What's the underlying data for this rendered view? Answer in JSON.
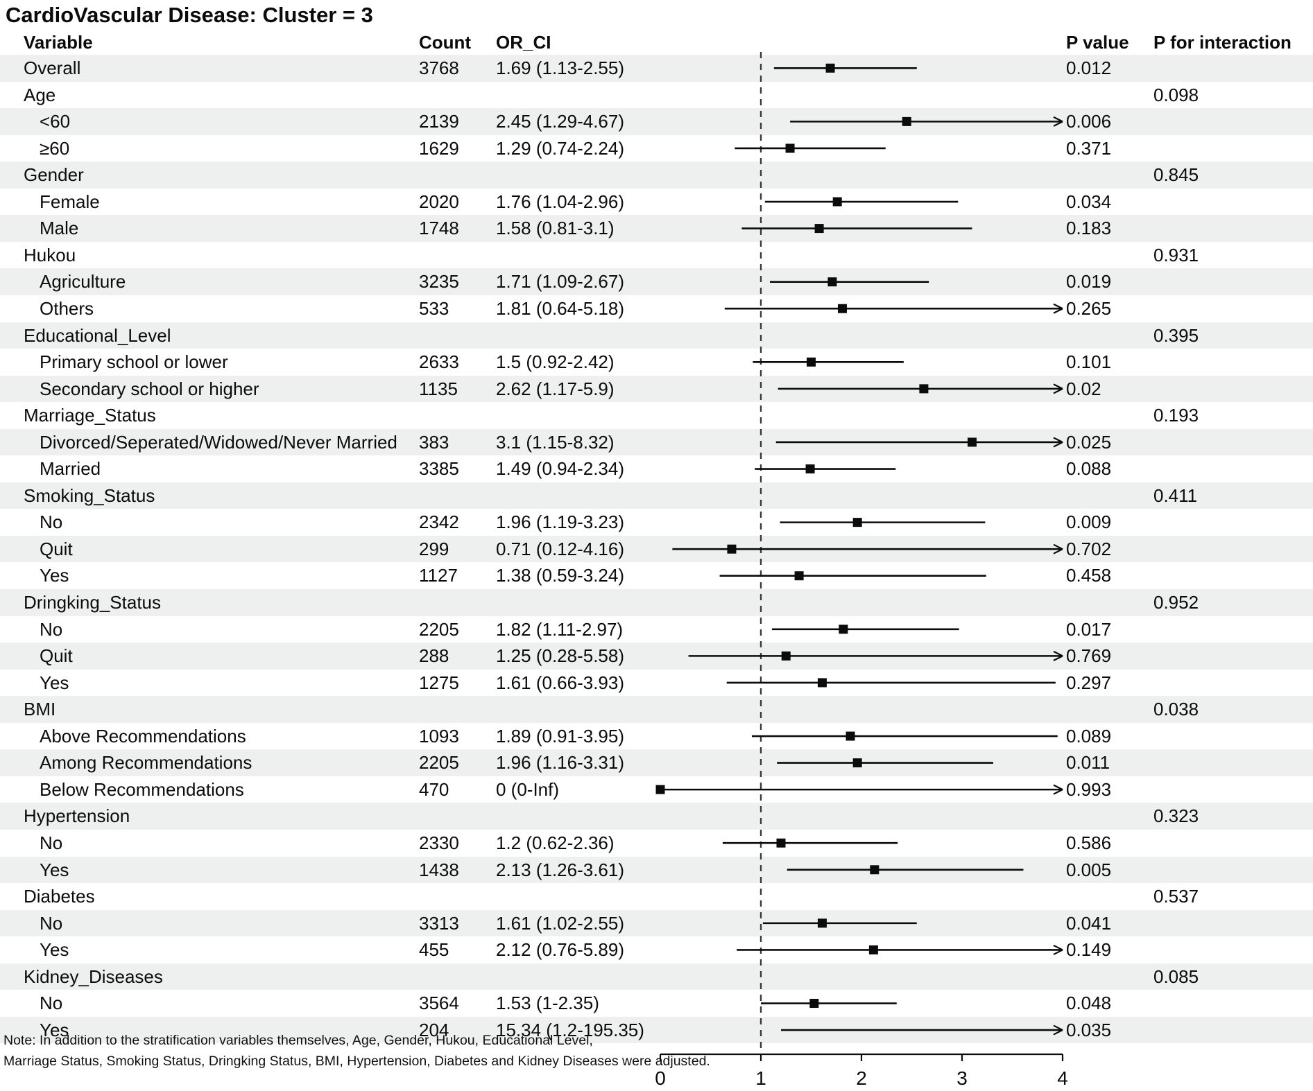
{
  "title": "CardioVascular Disease: Cluster = 3",
  "columns": {
    "variable": "Variable",
    "count": "Count",
    "or_ci": "OR_CI",
    "p_value": "P value",
    "p_interaction": "P for interaction"
  },
  "note_lines": [
    "Note: In addition to the stratification variables themselves, Age, Gender, Hukou, Educational Level,",
    "Marriage Status, Smoking Status, Dringking Status, BMI, Hypertension, Diabetes and Kidney Diseases were adjusted."
  ],
  "colors": {
    "row_shade": "#edf0ef",
    "ink": "#0b0b0b"
  },
  "chart_data": {
    "type": "forest",
    "title": "CardioVascular Disease: Cluster = 3",
    "x_axis": {
      "ticks": [
        0,
        1,
        2,
        3,
        4
      ],
      "range": [
        0,
        4
      ],
      "reference_line": 1,
      "grid": false
    },
    "rows": [
      {
        "label": "Overall",
        "indent": false,
        "shaded": true,
        "count": "3768",
        "or_ci": "1.69 (1.13-2.55)",
        "or": 1.69,
        "low": 1.13,
        "high": 2.55,
        "arrow": false,
        "p": "0.012",
        "p_interaction": ""
      },
      {
        "label": "Age",
        "indent": false,
        "shaded": false,
        "count": "",
        "or_ci": "",
        "or": null,
        "low": null,
        "high": null,
        "arrow": false,
        "p": "",
        "p_interaction": "0.098"
      },
      {
        "label": "<60",
        "indent": true,
        "shaded": true,
        "count": "2139",
        "or_ci": "2.45 (1.29-4.67)",
        "or": 2.45,
        "low": 1.29,
        "high": 4.67,
        "arrow": true,
        "p": "0.006",
        "p_interaction": ""
      },
      {
        "label": "≥60",
        "indent": true,
        "shaded": false,
        "count": "1629",
        "or_ci": "1.29 (0.74-2.24)",
        "or": 1.29,
        "low": 0.74,
        "high": 2.24,
        "arrow": false,
        "p": "0.371",
        "p_interaction": ""
      },
      {
        "label": "Gender",
        "indent": false,
        "shaded": true,
        "count": "",
        "or_ci": "",
        "or": null,
        "low": null,
        "high": null,
        "arrow": false,
        "p": "",
        "p_interaction": "0.845"
      },
      {
        "label": "Female",
        "indent": true,
        "shaded": false,
        "count": "2020",
        "or_ci": "1.76 (1.04-2.96)",
        "or": 1.76,
        "low": 1.04,
        "high": 2.96,
        "arrow": false,
        "p": "0.034",
        "p_interaction": ""
      },
      {
        "label": "Male",
        "indent": true,
        "shaded": true,
        "count": "1748",
        "or_ci": "1.58 (0.81-3.1)",
        "or": 1.58,
        "low": 0.81,
        "high": 3.1,
        "arrow": false,
        "p": "0.183",
        "p_interaction": ""
      },
      {
        "label": "Hukou",
        "indent": false,
        "shaded": false,
        "count": "",
        "or_ci": "",
        "or": null,
        "low": null,
        "high": null,
        "arrow": false,
        "p": "",
        "p_interaction": "0.931"
      },
      {
        "label": "Agriculture",
        "indent": true,
        "shaded": true,
        "count": "3235",
        "or_ci": "1.71 (1.09-2.67)",
        "or": 1.71,
        "low": 1.09,
        "high": 2.67,
        "arrow": false,
        "p": "0.019",
        "p_interaction": ""
      },
      {
        "label": "Others",
        "indent": true,
        "shaded": false,
        "count": "533",
        "or_ci": "1.81 (0.64-5.18)",
        "or": 1.81,
        "low": 0.64,
        "high": 5.18,
        "arrow": true,
        "p": "0.265",
        "p_interaction": ""
      },
      {
        "label": "Educational_Level",
        "indent": false,
        "shaded": true,
        "count": "",
        "or_ci": "",
        "or": null,
        "low": null,
        "high": null,
        "arrow": false,
        "p": "",
        "p_interaction": "0.395"
      },
      {
        "label": "Primary school or lower",
        "indent": true,
        "shaded": false,
        "count": "2633",
        "or_ci": "1.5 (0.92-2.42)",
        "or": 1.5,
        "low": 0.92,
        "high": 2.42,
        "arrow": false,
        "p": "0.101",
        "p_interaction": ""
      },
      {
        "label": "Secondary school or higher",
        "indent": true,
        "shaded": true,
        "count": "1135",
        "or_ci": "2.62 (1.17-5.9)",
        "or": 2.62,
        "low": 1.17,
        "high": 5.9,
        "arrow": true,
        "p": "0.02",
        "p_interaction": ""
      },
      {
        "label": "Marriage_Status",
        "indent": false,
        "shaded": false,
        "count": "",
        "or_ci": "",
        "or": null,
        "low": null,
        "high": null,
        "arrow": false,
        "p": "",
        "p_interaction": "0.193"
      },
      {
        "label": "Divorced/Seperated/Widowed/Never Married",
        "indent": true,
        "shaded": true,
        "count": "383",
        "or_ci": "3.1 (1.15-8.32)",
        "or": 3.1,
        "low": 1.15,
        "high": 8.32,
        "arrow": true,
        "p": "0.025",
        "p_interaction": ""
      },
      {
        "label": "Married",
        "indent": true,
        "shaded": false,
        "count": "3385",
        "or_ci": "1.49 (0.94-2.34)",
        "or": 1.49,
        "low": 0.94,
        "high": 2.34,
        "arrow": false,
        "p": "0.088",
        "p_interaction": ""
      },
      {
        "label": "Smoking_Status",
        "indent": false,
        "shaded": true,
        "count": "",
        "or_ci": "",
        "or": null,
        "low": null,
        "high": null,
        "arrow": false,
        "p": "",
        "p_interaction": "0.411"
      },
      {
        "label": "No",
        "indent": true,
        "shaded": false,
        "count": "2342",
        "or_ci": "1.96 (1.19-3.23)",
        "or": 1.96,
        "low": 1.19,
        "high": 3.23,
        "arrow": false,
        "p": "0.009",
        "p_interaction": ""
      },
      {
        "label": "Quit",
        "indent": true,
        "shaded": true,
        "count": "299",
        "or_ci": "0.71 (0.12-4.16)",
        "or": 0.71,
        "low": 0.12,
        "high": 4.16,
        "arrow": true,
        "p": "0.702",
        "p_interaction": ""
      },
      {
        "label": "Yes",
        "indent": true,
        "shaded": false,
        "count": "1127",
        "or_ci": "1.38 (0.59-3.24)",
        "or": 1.38,
        "low": 0.59,
        "high": 3.24,
        "arrow": false,
        "p": "0.458",
        "p_interaction": ""
      },
      {
        "label": "Dringking_Status",
        "indent": false,
        "shaded": true,
        "count": "",
        "or_ci": "",
        "or": null,
        "low": null,
        "high": null,
        "arrow": false,
        "p": "",
        "p_interaction": "0.952"
      },
      {
        "label": "No",
        "indent": true,
        "shaded": false,
        "count": "2205",
        "or_ci": "1.82 (1.11-2.97)",
        "or": 1.82,
        "low": 1.11,
        "high": 2.97,
        "arrow": false,
        "p": "0.017",
        "p_interaction": ""
      },
      {
        "label": "Quit",
        "indent": true,
        "shaded": true,
        "count": "288",
        "or_ci": "1.25 (0.28-5.58)",
        "or": 1.25,
        "low": 0.28,
        "high": 5.58,
        "arrow": true,
        "p": "0.769",
        "p_interaction": ""
      },
      {
        "label": "Yes",
        "indent": true,
        "shaded": false,
        "count": "1275",
        "or_ci": "1.61 (0.66-3.93)",
        "or": 1.61,
        "low": 0.66,
        "high": 3.93,
        "arrow": false,
        "p": "0.297",
        "p_interaction": ""
      },
      {
        "label": "BMI",
        "indent": false,
        "shaded": true,
        "count": "",
        "or_ci": "",
        "or": null,
        "low": null,
        "high": null,
        "arrow": false,
        "p": "",
        "p_interaction": "0.038"
      },
      {
        "label": "Above Recommendations",
        "indent": true,
        "shaded": false,
        "count": "1093",
        "or_ci": "1.89 (0.91-3.95)",
        "or": 1.89,
        "low": 0.91,
        "high": 3.95,
        "arrow": false,
        "p": "0.089",
        "p_interaction": ""
      },
      {
        "label": "Among Recommendations",
        "indent": true,
        "shaded": true,
        "count": "2205",
        "or_ci": "1.96 (1.16-3.31)",
        "or": 1.96,
        "low": 1.16,
        "high": 3.31,
        "arrow": false,
        "p": "0.011",
        "p_interaction": ""
      },
      {
        "label": "Below Recommendations",
        "indent": true,
        "shaded": false,
        "count": "470",
        "or_ci": "0 (0-Inf)",
        "or": 0,
        "low": 0,
        "high": null,
        "arrow": true,
        "p": "0.993",
        "p_interaction": ""
      },
      {
        "label": "Hypertension",
        "indent": false,
        "shaded": true,
        "count": "",
        "or_ci": "",
        "or": null,
        "low": null,
        "high": null,
        "arrow": false,
        "p": "",
        "p_interaction": "0.323"
      },
      {
        "label": "No",
        "indent": true,
        "shaded": false,
        "count": "2330",
        "or_ci": "1.2 (0.62-2.36)",
        "or": 1.2,
        "low": 0.62,
        "high": 2.36,
        "arrow": false,
        "p": "0.586",
        "p_interaction": ""
      },
      {
        "label": "Yes",
        "indent": true,
        "shaded": true,
        "count": "1438",
        "or_ci": "2.13 (1.26-3.61)",
        "or": 2.13,
        "low": 1.26,
        "high": 3.61,
        "arrow": false,
        "p": "0.005",
        "p_interaction": ""
      },
      {
        "label": "Diabetes",
        "indent": false,
        "shaded": false,
        "count": "",
        "or_ci": "",
        "or": null,
        "low": null,
        "high": null,
        "arrow": false,
        "p": "",
        "p_interaction": "0.537"
      },
      {
        "label": "No",
        "indent": true,
        "shaded": true,
        "count": "3313",
        "or_ci": "1.61 (1.02-2.55)",
        "or": 1.61,
        "low": 1.02,
        "high": 2.55,
        "arrow": false,
        "p": "0.041",
        "p_interaction": ""
      },
      {
        "label": "Yes",
        "indent": true,
        "shaded": false,
        "count": "455",
        "or_ci": "2.12 (0.76-5.89)",
        "or": 2.12,
        "low": 0.76,
        "high": 5.89,
        "arrow": true,
        "p": "0.149",
        "p_interaction": ""
      },
      {
        "label": "Kidney_Diseases",
        "indent": false,
        "shaded": true,
        "count": "",
        "or_ci": "",
        "or": null,
        "low": null,
        "high": null,
        "arrow": false,
        "p": "",
        "p_interaction": "0.085"
      },
      {
        "label": "No",
        "indent": true,
        "shaded": false,
        "count": "3564",
        "or_ci": "1.53 (1-2.35)",
        "or": 1.53,
        "low": 1,
        "high": 2.35,
        "arrow": false,
        "p": "0.048",
        "p_interaction": ""
      },
      {
        "label": "Yes",
        "indent": true,
        "shaded": true,
        "count": "204",
        "or_ci": "15.34 (1.2-195.35)",
        "or": 15.34,
        "low": 1.2,
        "high": 195.35,
        "arrow": true,
        "p": "0.035",
        "p_interaction": ""
      }
    ]
  }
}
